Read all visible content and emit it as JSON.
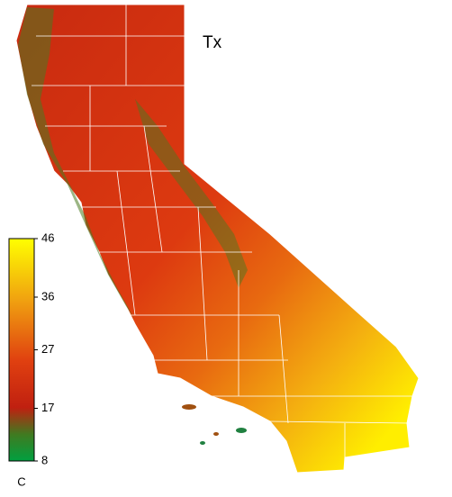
{
  "map": {
    "title": "Tx",
    "colorbar": {
      "unit": "C",
      "lim": [
        8,
        46
      ],
      "ticks": [
        8,
        17,
        27,
        36,
        46
      ]
    }
  }
}
